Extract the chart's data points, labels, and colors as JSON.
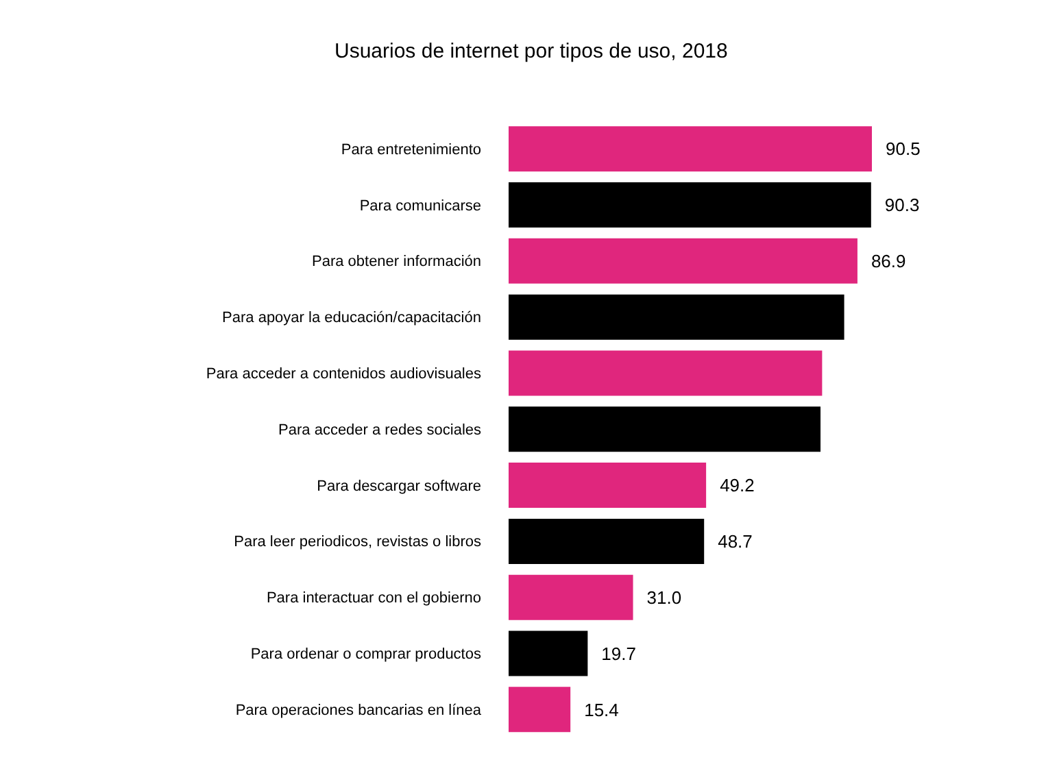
{
  "chart_data": {
    "type": "bar",
    "orientation": "horizontal",
    "title": "Usuarios de internet por tipos de uso, 2018",
    "categories": [
      "Para entretenimiento",
      "Para comunicarse",
      "Para obtener información",
      "Para apoyar la educación/capacitación",
      "Para acceder a contenidos audiovisuales",
      "Para acceder a redes sociales",
      "Para descargar software",
      "Para leer periodicos, revistas o libros",
      "Para interactuar con el gobierno",
      "Para ordenar o comprar productos",
      "Para operaciones bancarias en línea"
    ],
    "values": [
      90.5,
      90.3,
      86.9,
      83.6,
      78.1,
      77.7,
      49.2,
      48.7,
      31.0,
      19.7,
      15.4
    ],
    "colors": [
      "#e0267d",
      "#000000",
      "#e0267d",
      "#000000",
      "#e0267d",
      "#000000",
      "#e0267d",
      "#000000",
      "#e0267d",
      "#000000",
      "#e0267d"
    ],
    "value_labels": [
      "90.5",
      "90.3",
      "86.9",
      null,
      null,
      null,
      "49.2",
      "48.7",
      "31.0",
      "19.7",
      "15.4"
    ],
    "grid": false
  }
}
